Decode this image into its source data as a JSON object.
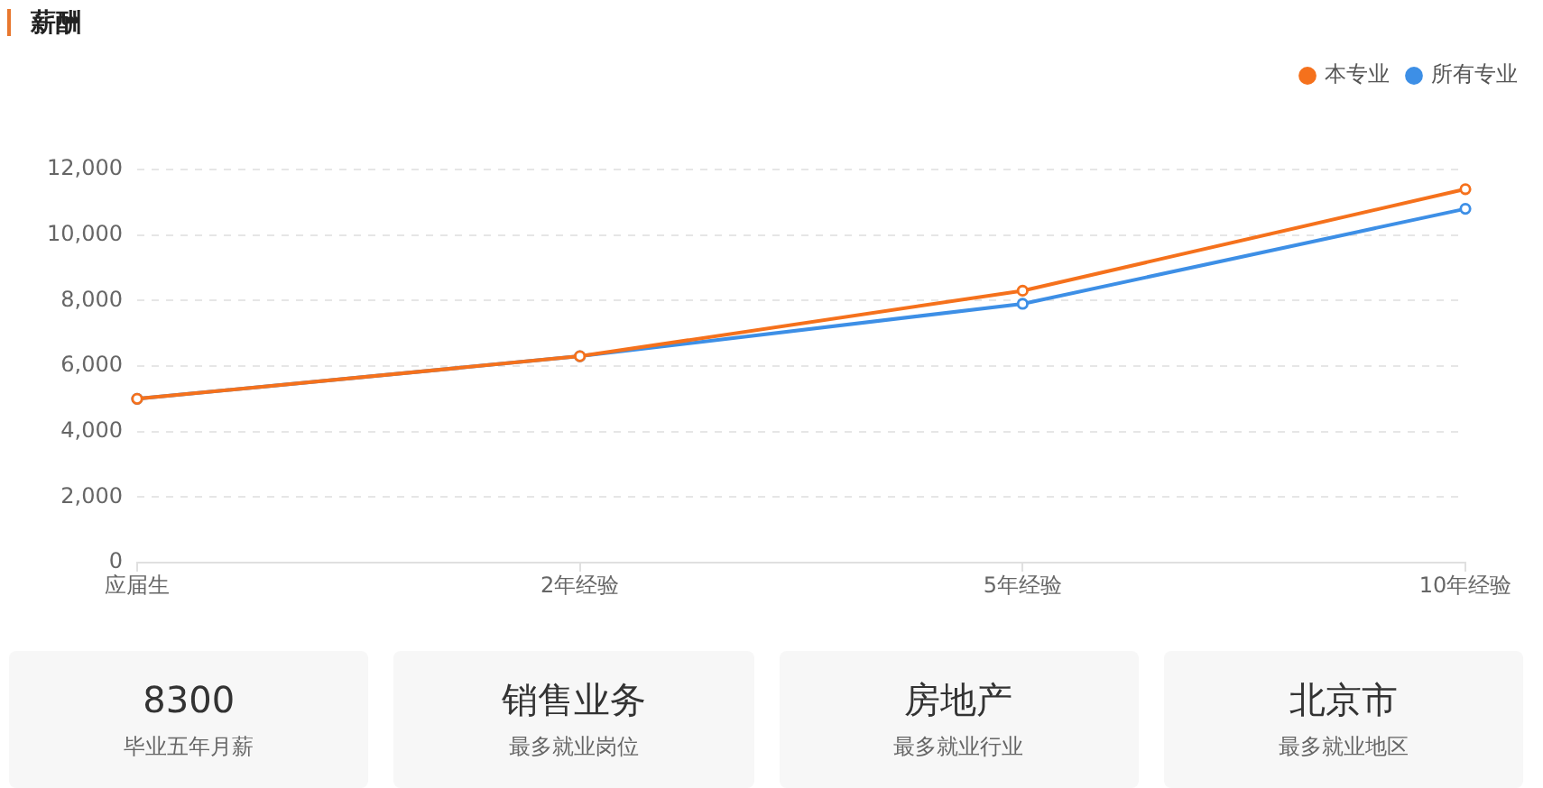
{
  "chart_data": [
    {
      "type": "line",
      "title": "薪酬",
      "categories": [
        "应届生",
        "2年经验",
        "5年经验",
        "10年经验"
      ],
      "series": [
        {
          "name": "本专业",
          "color": "#f5711c",
          "values": [
            5000,
            6300,
            8300,
            11400
          ]
        },
        {
          "name": "所有专业",
          "color": "#3d8fe6",
          "values": [
            5000,
            6300,
            7900,
            10800
          ]
        }
      ],
      "ylim": [
        0,
        12000
      ],
      "yticks": [
        0,
        {
          "value": 2000,
          "label": "2,000"
        },
        {
          "value": 4000,
          "label": "4,000"
        },
        {
          "value": 6000,
          "label": "6,000"
        },
        {
          "value": 8000,
          "label": "8,000"
        },
        {
          "value": 10000,
          "label": "10,000"
        },
        {
          "value": 12000,
          "label": "12,000"
        }
      ],
      "grid": "y",
      "legend": "top right",
      "marker": "circle",
      "line_style": "solid"
    },
    {
      "type": "other",
      "annotations": [
        "8300",
        "毕业五年月薪",
        "销售业务",
        "最多就业岗位",
        "房地产",
        "最多就业行业",
        "北京市",
        "最多就业地区"
      ]
    }
  ]
}
